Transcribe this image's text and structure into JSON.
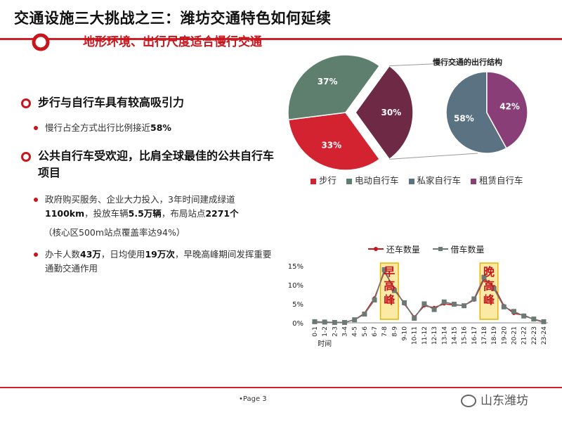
{
  "header": {
    "title": "交通设施三大挑战之三：潍坊交通特色如何延续",
    "subtitle": "地形环境、出行尺度适合慢行交通"
  },
  "bullets": {
    "b1": {
      "heading": "步行与自行车具有较高吸引力",
      "detail_pre": "慢行占全方式出行比例接近",
      "detail_bold": "58%"
    },
    "b2": {
      "heading": "公共自行车受欢迎，比肩全球最佳的公共自行车项目",
      "d1_a": "政府购买服务、企业大力投入，3年时间建成绿道",
      "d1_b": "1100km",
      "d1_c": "，投放车辆",
      "d1_d": "5.5万辆",
      "d1_e": "，布局站点",
      "d1_f": "2271个",
      "note": "（核心区500m站点覆盖率达94%）",
      "d2_a": "办卡人数",
      "d2_b": "43万",
      "d2_c": "，日均使用",
      "d2_d": "19万次",
      "d2_e": "，早晚高峰期间发挥重要通勤交通作用"
    }
  },
  "chart_data": [
    {
      "type": "pie",
      "categories": [
        "步行",
        "电动自行车",
        "私家自行车"
      ],
      "values": [
        33,
        37,
        30
      ],
      "labels": [
        "33%",
        "37%",
        "30%"
      ],
      "colors": [
        "#d32230",
        "#5f7f6e",
        "#6e2a45"
      ],
      "legend": "bottom"
    },
    {
      "type": "pie",
      "title": "慢行交通的出行结构",
      "categories": [
        "私家自行车",
        "租赁自行车"
      ],
      "values": [
        58,
        42
      ],
      "labels": [
        "58%",
        "42%"
      ],
      "colors": [
        "#5a7282",
        "#8a3e78"
      ]
    },
    {
      "type": "line",
      "categories": [
        "0-1",
        "1-2",
        "2-3",
        "3-4",
        "4-5",
        "5-6",
        "6-7",
        "7-8",
        "8-9",
        "9-10",
        "10-11",
        "11-12",
        "12-13",
        "13-14",
        "14-15",
        "15-16",
        "16-17",
        "17-18",
        "18-19",
        "19-20",
        "20-21",
        "21-22",
        "22-23",
        "23-24"
      ],
      "xlabel": "时间",
      "yticks": [
        "0%",
        "5%",
        "10%",
        "15%"
      ],
      "ylim": [
        0,
        15
      ],
      "series": [
        {
          "name": "还车数量",
          "color": "#c8161d",
          "values": [
            0.3,
            0.2,
            0.1,
            0.1,
            0.8,
            2.5,
            6.5,
            13.5,
            9.0,
            5.0,
            1.5,
            4.5,
            4.0,
            5.0,
            4.7,
            4.6,
            6.0,
            11.5,
            9.5,
            4.5,
            2.5,
            2.0,
            0.9,
            0.2
          ]
        },
        {
          "name": "借车数量",
          "color": "#6b7a74",
          "values": [
            0.3,
            0.2,
            0.1,
            0.1,
            0.8,
            2.3,
            6.0,
            14.0,
            8.5,
            5.3,
            1.2,
            5.0,
            3.5,
            5.5,
            4.9,
            4.5,
            6.3,
            12.0,
            9.0,
            4.2,
            3.0,
            1.8,
            1.0,
            0.3
          ]
        }
      ],
      "annotations": [
        "早高峰",
        "晚高峰"
      ]
    }
  ],
  "legend_title_pie": "慢行交通的出行结构",
  "pie_legend": [
    "步行",
    "电动自行车",
    "私家自行车",
    "租赁自行车"
  ],
  "footer": {
    "page": "•Page 3",
    "brand": "山东潍坊"
  },
  "colors": {
    "accent": "#c8161d",
    "walk": "#d32230",
    "ebike": "#5f7f6e",
    "private": "#5a7282",
    "rent": "#8a3e78"
  }
}
